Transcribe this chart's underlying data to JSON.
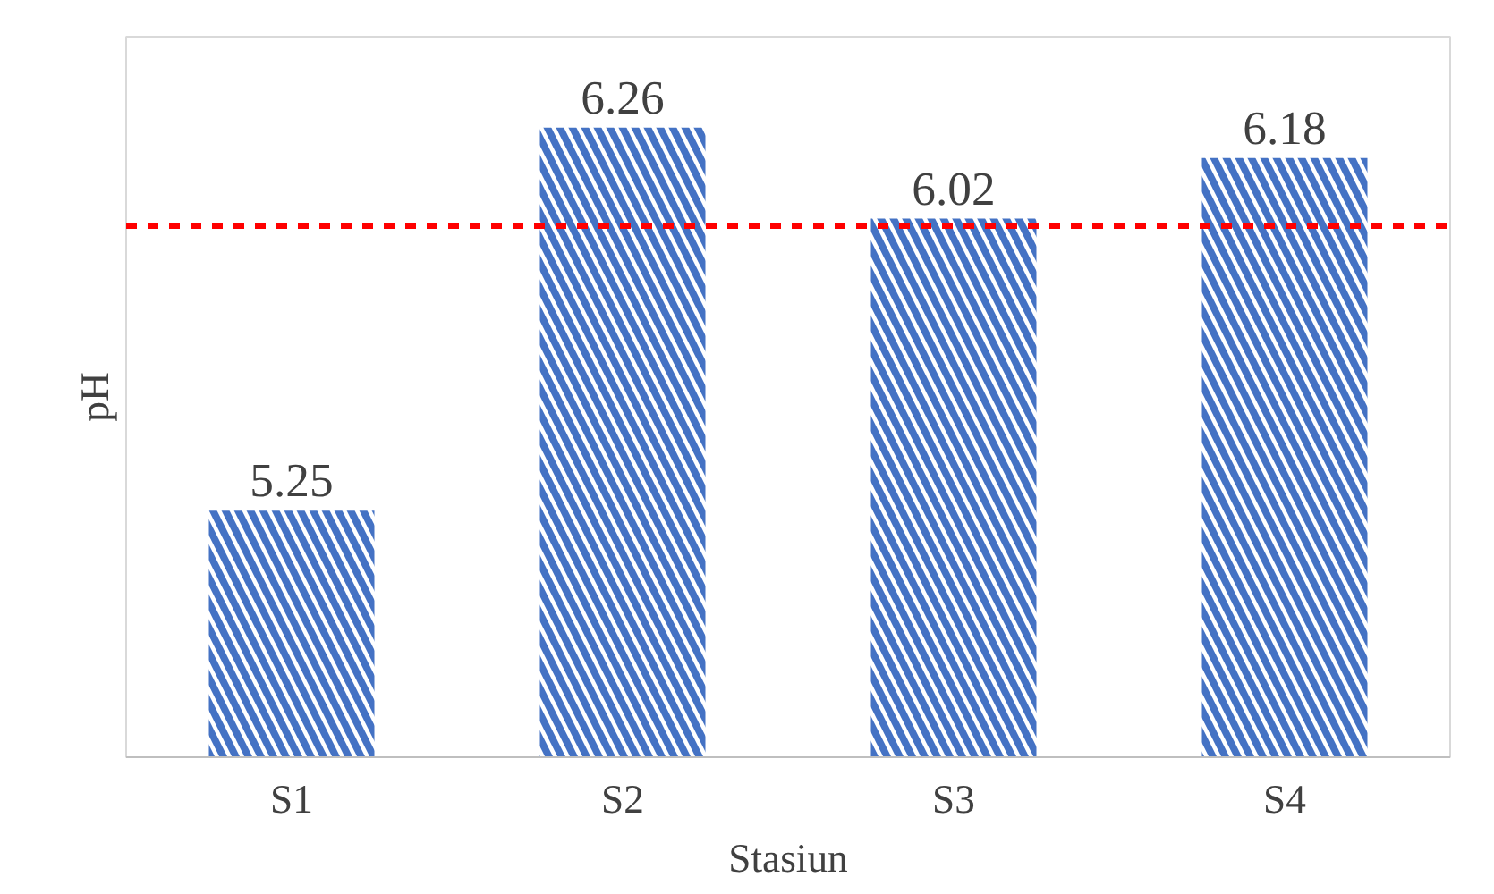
{
  "chart_data": {
    "type": "bar",
    "xlabel": "Stasiun",
    "ylabel": "pH",
    "categories": [
      "S1",
      "S2",
      "S3",
      "S4"
    ],
    "values": [
      5.25,
      6.26,
      6.02,
      6.18
    ],
    "color": "#4472c4",
    "data_labels": true,
    "ylim": [
      4.6,
      6.5
    ],
    "tick_labels": "x",
    "grid": false,
    "ref_lines": [
      {
        "axis": "y",
        "value": 6.0,
        "color": "#ff0000",
        "line_style": "dashed"
      }
    ]
  }
}
